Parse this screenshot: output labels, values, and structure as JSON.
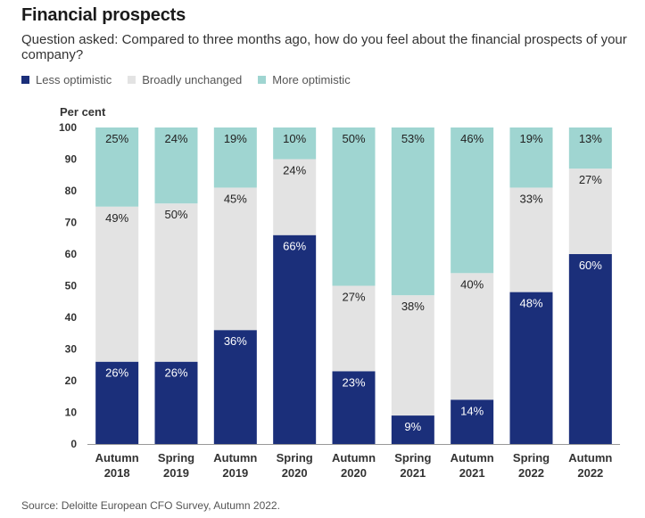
{
  "header": {
    "title": "Financial prospects",
    "subtitle": "Question asked: Compared to three months ago, how do you feel about the financial prospects of your company?"
  },
  "footer": {
    "source": "Source: Deloitte European CFO Survey, Autumn 2022."
  },
  "chart_data": {
    "type": "bar",
    "stacked": true,
    "title": "Financial prospects",
    "ylabel": "Per cent",
    "ylim": [
      0,
      100
    ],
    "yticks": [
      0,
      10,
      20,
      30,
      40,
      50,
      60,
      70,
      80,
      90,
      100
    ],
    "grid": false,
    "legend_position": "top-left",
    "categories": [
      [
        "Autumn",
        "2018"
      ],
      [
        "Spring",
        "2019"
      ],
      [
        "Autumn",
        "2019"
      ],
      [
        "Spring",
        "2020"
      ],
      [
        "Autumn",
        "2020"
      ],
      [
        "Spring",
        "2021"
      ],
      [
        "Autumn",
        "2021"
      ],
      [
        "Spring",
        "2022"
      ],
      [
        "Autumn",
        "2022"
      ]
    ],
    "series": [
      {
        "name": "Less optimistic",
        "color": "#1b2f7a",
        "label_color": "#ffffff",
        "values": [
          26,
          26,
          36,
          66,
          23,
          9,
          14,
          48,
          60
        ]
      },
      {
        "name": "Broadly unchanged",
        "color": "#e3e3e3",
        "label_color": "#222222",
        "values": [
          49,
          50,
          45,
          24,
          27,
          38,
          40,
          33,
          27
        ]
      },
      {
        "name": "More optimistic",
        "color": "#9fd5d1",
        "label_color": "#222222",
        "values": [
          25,
          24,
          19,
          10,
          50,
          53,
          46,
          19,
          13
        ]
      }
    ]
  }
}
